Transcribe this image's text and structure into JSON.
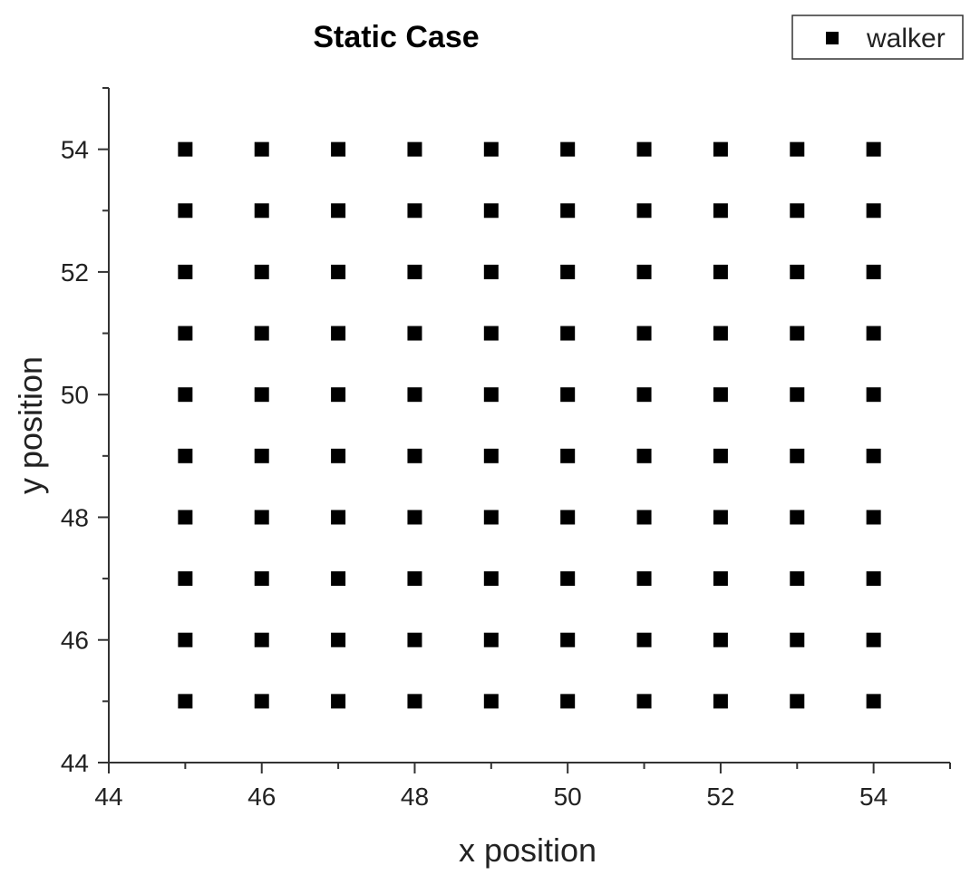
{
  "chart_data": {
    "type": "scatter",
    "title": "Static Case",
    "xlabel": "x position",
    "ylabel": "y position",
    "xlim": [
      44,
      55
    ],
    "ylim": [
      44,
      55
    ],
    "xticks": [
      44,
      46,
      48,
      50,
      52,
      54
    ],
    "yticks": [
      44,
      46,
      48,
      50,
      52,
      54
    ],
    "grid": false,
    "legend_position": "top-right",
    "series": [
      {
        "name": "walker",
        "marker": "square",
        "color": "#000000",
        "x_values": [
          45,
          46,
          47,
          48,
          49,
          50,
          51,
          52,
          53,
          54
        ],
        "y_values": [
          45,
          46,
          47,
          48,
          49,
          50,
          51,
          52,
          53,
          54
        ]
      }
    ]
  }
}
